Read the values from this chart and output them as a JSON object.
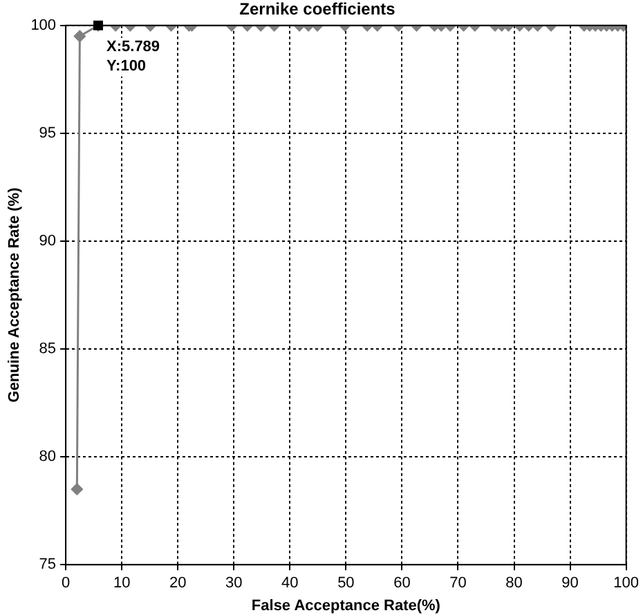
{
  "chart_data": {
    "type": "line",
    "title": "Zernike coefficients",
    "xlabel": "False Acceptance Rate(%)",
    "ylabel": "Genuine Acceptance Rate (%)",
    "xlim": [
      0,
      100
    ],
    "ylim": [
      75,
      100
    ],
    "xticks": [
      0,
      10,
      20,
      30,
      40,
      50,
      60,
      70,
      80,
      90,
      100
    ],
    "yticks": [
      75,
      80,
      85,
      90,
      95,
      100
    ],
    "grid": true,
    "legend": false,
    "marker": "diamond",
    "line_style": "solid",
    "series": [
      {
        "color": "#808080",
        "x": [
          2,
          2.5,
          5.789,
          8.9,
          11.5,
          15.1,
          18.8,
          22,
          22.5,
          29.6,
          32.4,
          34.8,
          37.2,
          41.7,
          43.3,
          44.9,
          49.8,
          53.8,
          55.6,
          59.4,
          62.6,
          65.8,
          67,
          68.6,
          71,
          73,
          76.6,
          77.8,
          79,
          81,
          82.6,
          84.2,
          86.6,
          92.5,
          93.5,
          94.5,
          95.5,
          96.5,
          97.5,
          98.5,
          99.5
        ],
        "values": [
          78.5,
          99.5,
          100,
          100,
          100,
          100,
          100,
          100,
          100,
          100,
          100,
          100,
          100,
          100,
          100,
          100,
          100,
          100,
          100,
          100,
          100,
          100,
          100,
          100,
          100,
          100,
          100,
          100,
          100,
          100,
          100,
          100,
          100,
          100,
          100,
          100,
          100,
          100,
          100,
          100,
          100
        ]
      }
    ],
    "annotations": [
      {
        "text": "X:5.789\nY:100",
        "x": 5.789,
        "y": 100
      }
    ]
  }
}
